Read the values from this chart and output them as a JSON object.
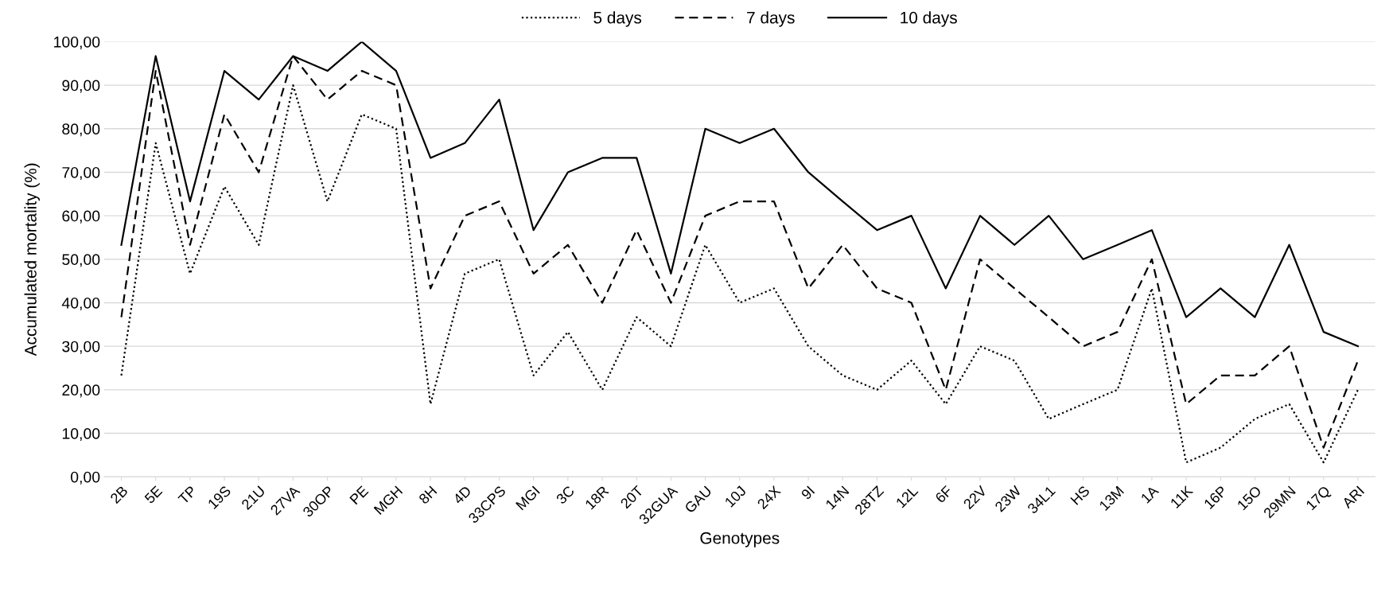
{
  "chart_data": {
    "type": "line",
    "xlabel": "Genotypes",
    "ylabel": "Accumulated mortality (%)",
    "categories": [
      "2B",
      "5E",
      "TP",
      "19S",
      "21U",
      "27VA",
      "30OP",
      "PE",
      "MGH",
      "8H",
      "4D",
      "33CPS",
      "MGI",
      "3C",
      "18R",
      "20T",
      "32GUA",
      "GAU",
      "10J",
      "24X",
      "9I",
      "14N",
      "28TZ",
      "12L",
      "6F",
      "22V",
      "23W",
      "34L1",
      "HS",
      "13M",
      "1A",
      "11K",
      "16P",
      "15O",
      "29MN",
      "17Q",
      "ARI"
    ],
    "series": [
      {
        "name": "5 days",
        "color": "#000000",
        "line_style": "dotted",
        "values": [
          23.3,
          76.7,
          46.7,
          66.7,
          53.3,
          90,
          63.3,
          83.3,
          80,
          16.7,
          46.7,
          50,
          23.3,
          33.3,
          20,
          36.7,
          30,
          53.3,
          40,
          43.3,
          30,
          23.3,
          20,
          26.7,
          16.7,
          30,
          26.7,
          13.3,
          16.7,
          20,
          43.3,
          3.3,
          6.7,
          13.3,
          16.7,
          3.3,
          20
        ]
      },
      {
        "name": "7 days",
        "color": "#000000",
        "line_style": "dashed",
        "values": [
          36.7,
          93.3,
          53.3,
          83.3,
          70,
          96.7,
          86.7,
          93.3,
          90,
          43.3,
          60,
          63.3,
          46.7,
          53.3,
          40,
          56.7,
          40,
          60,
          63.3,
          63.3,
          43.3,
          53.3,
          43.3,
          40,
          20,
          50,
          43.3,
          36.7,
          30,
          33.3,
          50,
          16.7,
          23.3,
          23.3,
          30,
          6.7,
          26.7
        ]
      },
      {
        "name": "10 days",
        "color": "#000000",
        "line_style": "solid",
        "values": [
          53.3,
          96.7,
          63.3,
          93.3,
          86.7,
          96.7,
          93.3,
          100,
          93.3,
          73.3,
          76.7,
          86.7,
          56.7,
          70,
          73.3,
          73.3,
          46.7,
          80,
          76.7,
          80,
          70,
          63.3,
          56.7,
          60,
          43.3,
          60,
          53.3,
          60,
          50,
          53.3,
          56.7,
          36.7,
          43.3,
          36.7,
          53.3,
          33.3,
          30
        ]
      }
    ],
    "ylim": [
      0,
      100
    ],
    "yticks": [
      {
        "value": 0,
        "label": "0,00"
      },
      {
        "value": 10,
        "label": "10,00"
      },
      {
        "value": 20,
        "label": "20,00"
      },
      {
        "value": 30,
        "label": "30,00"
      },
      {
        "value": 40,
        "label": "40,00"
      },
      {
        "value": 50,
        "label": "50,00"
      },
      {
        "value": 60,
        "label": "60,00"
      },
      {
        "value": 70,
        "label": "70,00"
      },
      {
        "value": 80,
        "label": "80,00"
      },
      {
        "value": 90,
        "label": "90,00"
      },
      {
        "value": 100,
        "label": "100,00"
      }
    ],
    "grid": "y",
    "legend": "top",
    "marker": "none"
  }
}
